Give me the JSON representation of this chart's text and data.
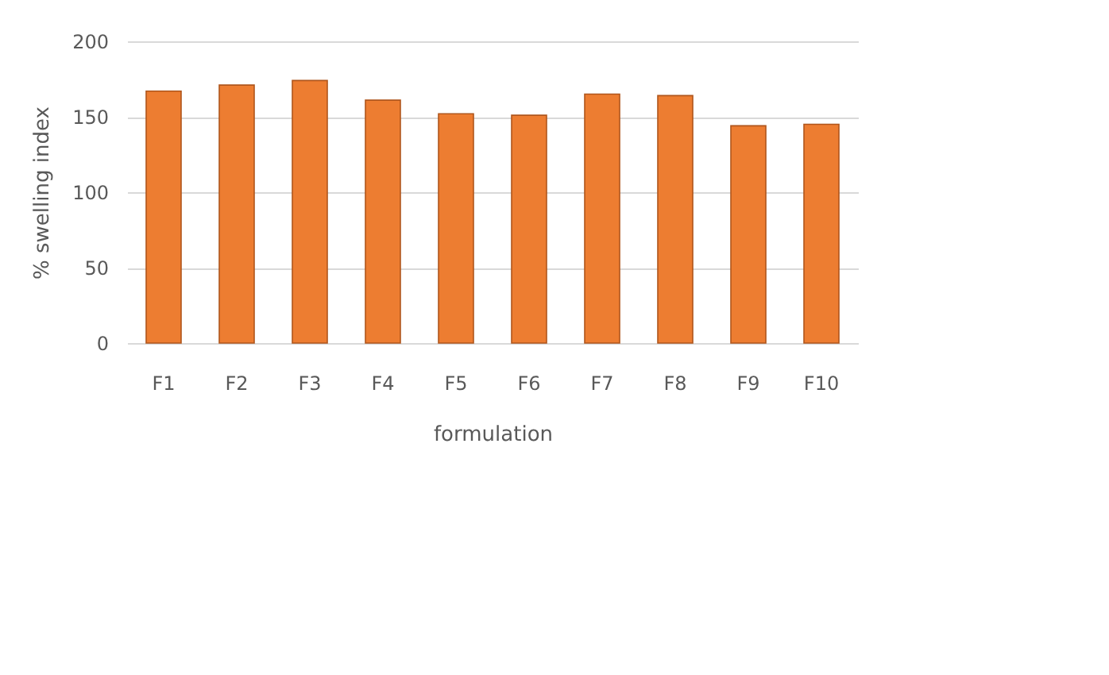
{
  "chart_data": {
    "type": "bar",
    "xlabel": "formulation",
    "ylabel": "% swelling index",
    "categories": [
      "F1",
      "F2",
      "F3",
      "F4",
      "F5",
      "F6",
      "F7",
      "F8",
      "F9",
      "F10"
    ],
    "values": [
      167,
      171,
      174,
      161,
      152,
      151,
      165,
      164,
      144,
      145
    ],
    "color": "#ed7d31",
    "ylim": [
      0,
      200
    ],
    "yticks": [
      0,
      50,
      100,
      150,
      200
    ],
    "grid": "y"
  }
}
